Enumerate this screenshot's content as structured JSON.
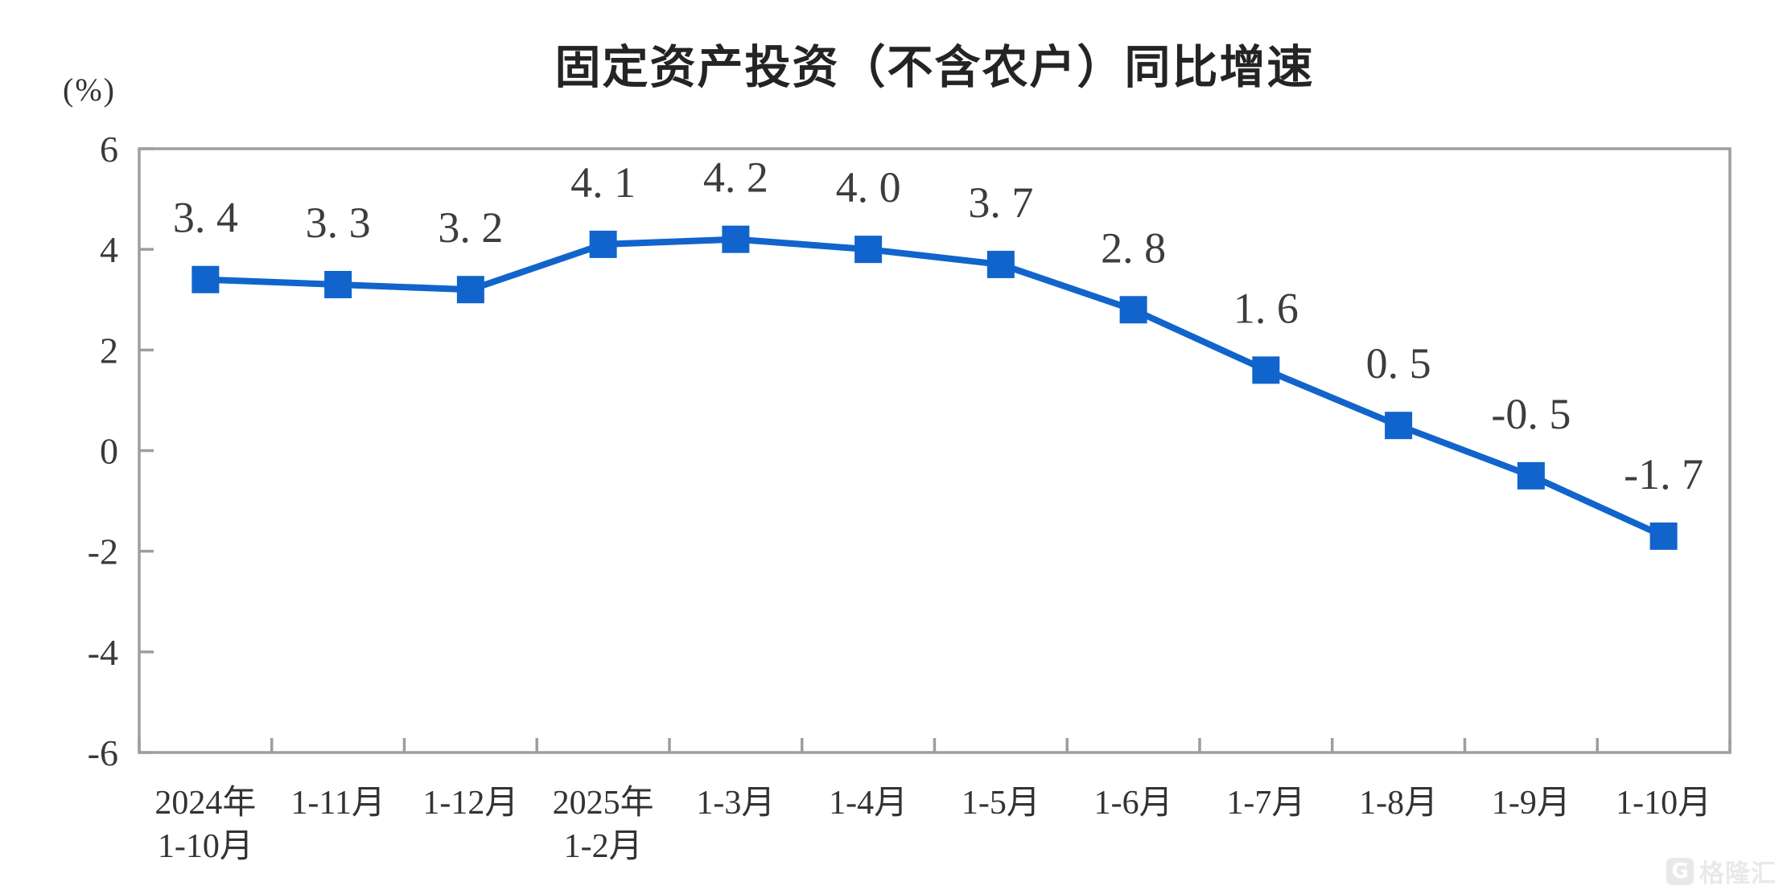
{
  "title": "固定资产投资（不含农户）同比增速",
  "watermark": {
    "logo": "G",
    "text": "格隆汇"
  },
  "chart_data": {
    "type": "line",
    "title": "固定资产投资（不含农户）同比增速",
    "ylabel": "(%)",
    "xlabel": "",
    "ylim": [
      -6,
      6
    ],
    "yticks": [
      6,
      4,
      2,
      0,
      -2,
      -4,
      -6
    ],
    "grid": false,
    "legend_position": "none",
    "marker": "square",
    "categories": [
      [
        "2024年",
        "1-10月"
      ],
      [
        "1-11月"
      ],
      [
        "1-12月"
      ],
      [
        "2025年",
        "1-2月"
      ],
      [
        "1-3月"
      ],
      [
        "1-4月"
      ],
      [
        "1-5月"
      ],
      [
        "1-6月"
      ],
      [
        "1-7月"
      ],
      [
        "1-8月"
      ],
      [
        "1-9月"
      ],
      [
        "1-10月"
      ]
    ],
    "series": [
      {
        "name": "固定资产投资（不含农户）同比增速",
        "values": [
          3.4,
          3.3,
          3.2,
          4.1,
          4.2,
          4.0,
          3.7,
          2.8,
          1.6,
          0.5,
          -0.5,
          -1.7
        ],
        "point_labels": [
          "3. 4",
          "3. 3",
          "3. 2",
          "4. 1",
          "4. 2",
          "4. 0",
          "3. 7",
          "2. 8",
          "1. 6",
          "0. 5",
          "-0. 5",
          "-1. 7"
        ]
      }
    ],
    "colors": {
      "line": "#1164cb",
      "axis": "#9e9e9e",
      "tick_label": "#3a3a3a",
      "point_label": "#3d3d3d",
      "category_label": "#333333"
    }
  }
}
